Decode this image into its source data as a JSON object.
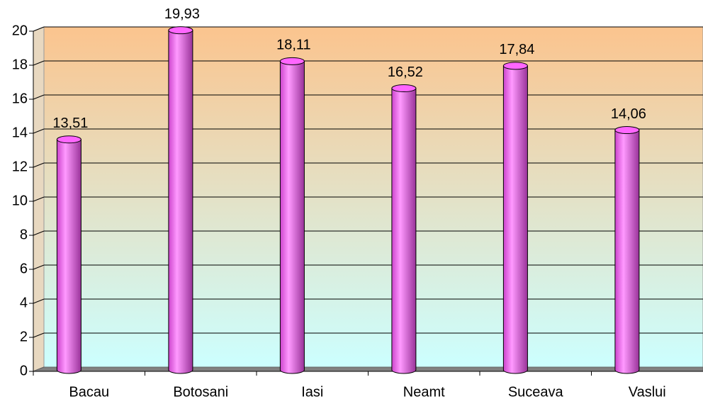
{
  "chart_data": {
    "type": "bar",
    "categories": [
      "Bacau",
      "Botosani",
      "Iasi",
      "Neamt",
      "Suceava",
      "Vaslui"
    ],
    "values": [
      13.51,
      19.93,
      18.11,
      16.52,
      17.84,
      14.06
    ],
    "value_labels": [
      "13,51",
      "19,93",
      "18,11",
      "16,52",
      "17,84",
      "14,06"
    ],
    "color": "#ff66ff",
    "ylim": [
      0,
      20
    ],
    "yticks": [
      0,
      2,
      4,
      6,
      8,
      10,
      12,
      14,
      16,
      18,
      20
    ],
    "grid": true
  }
}
